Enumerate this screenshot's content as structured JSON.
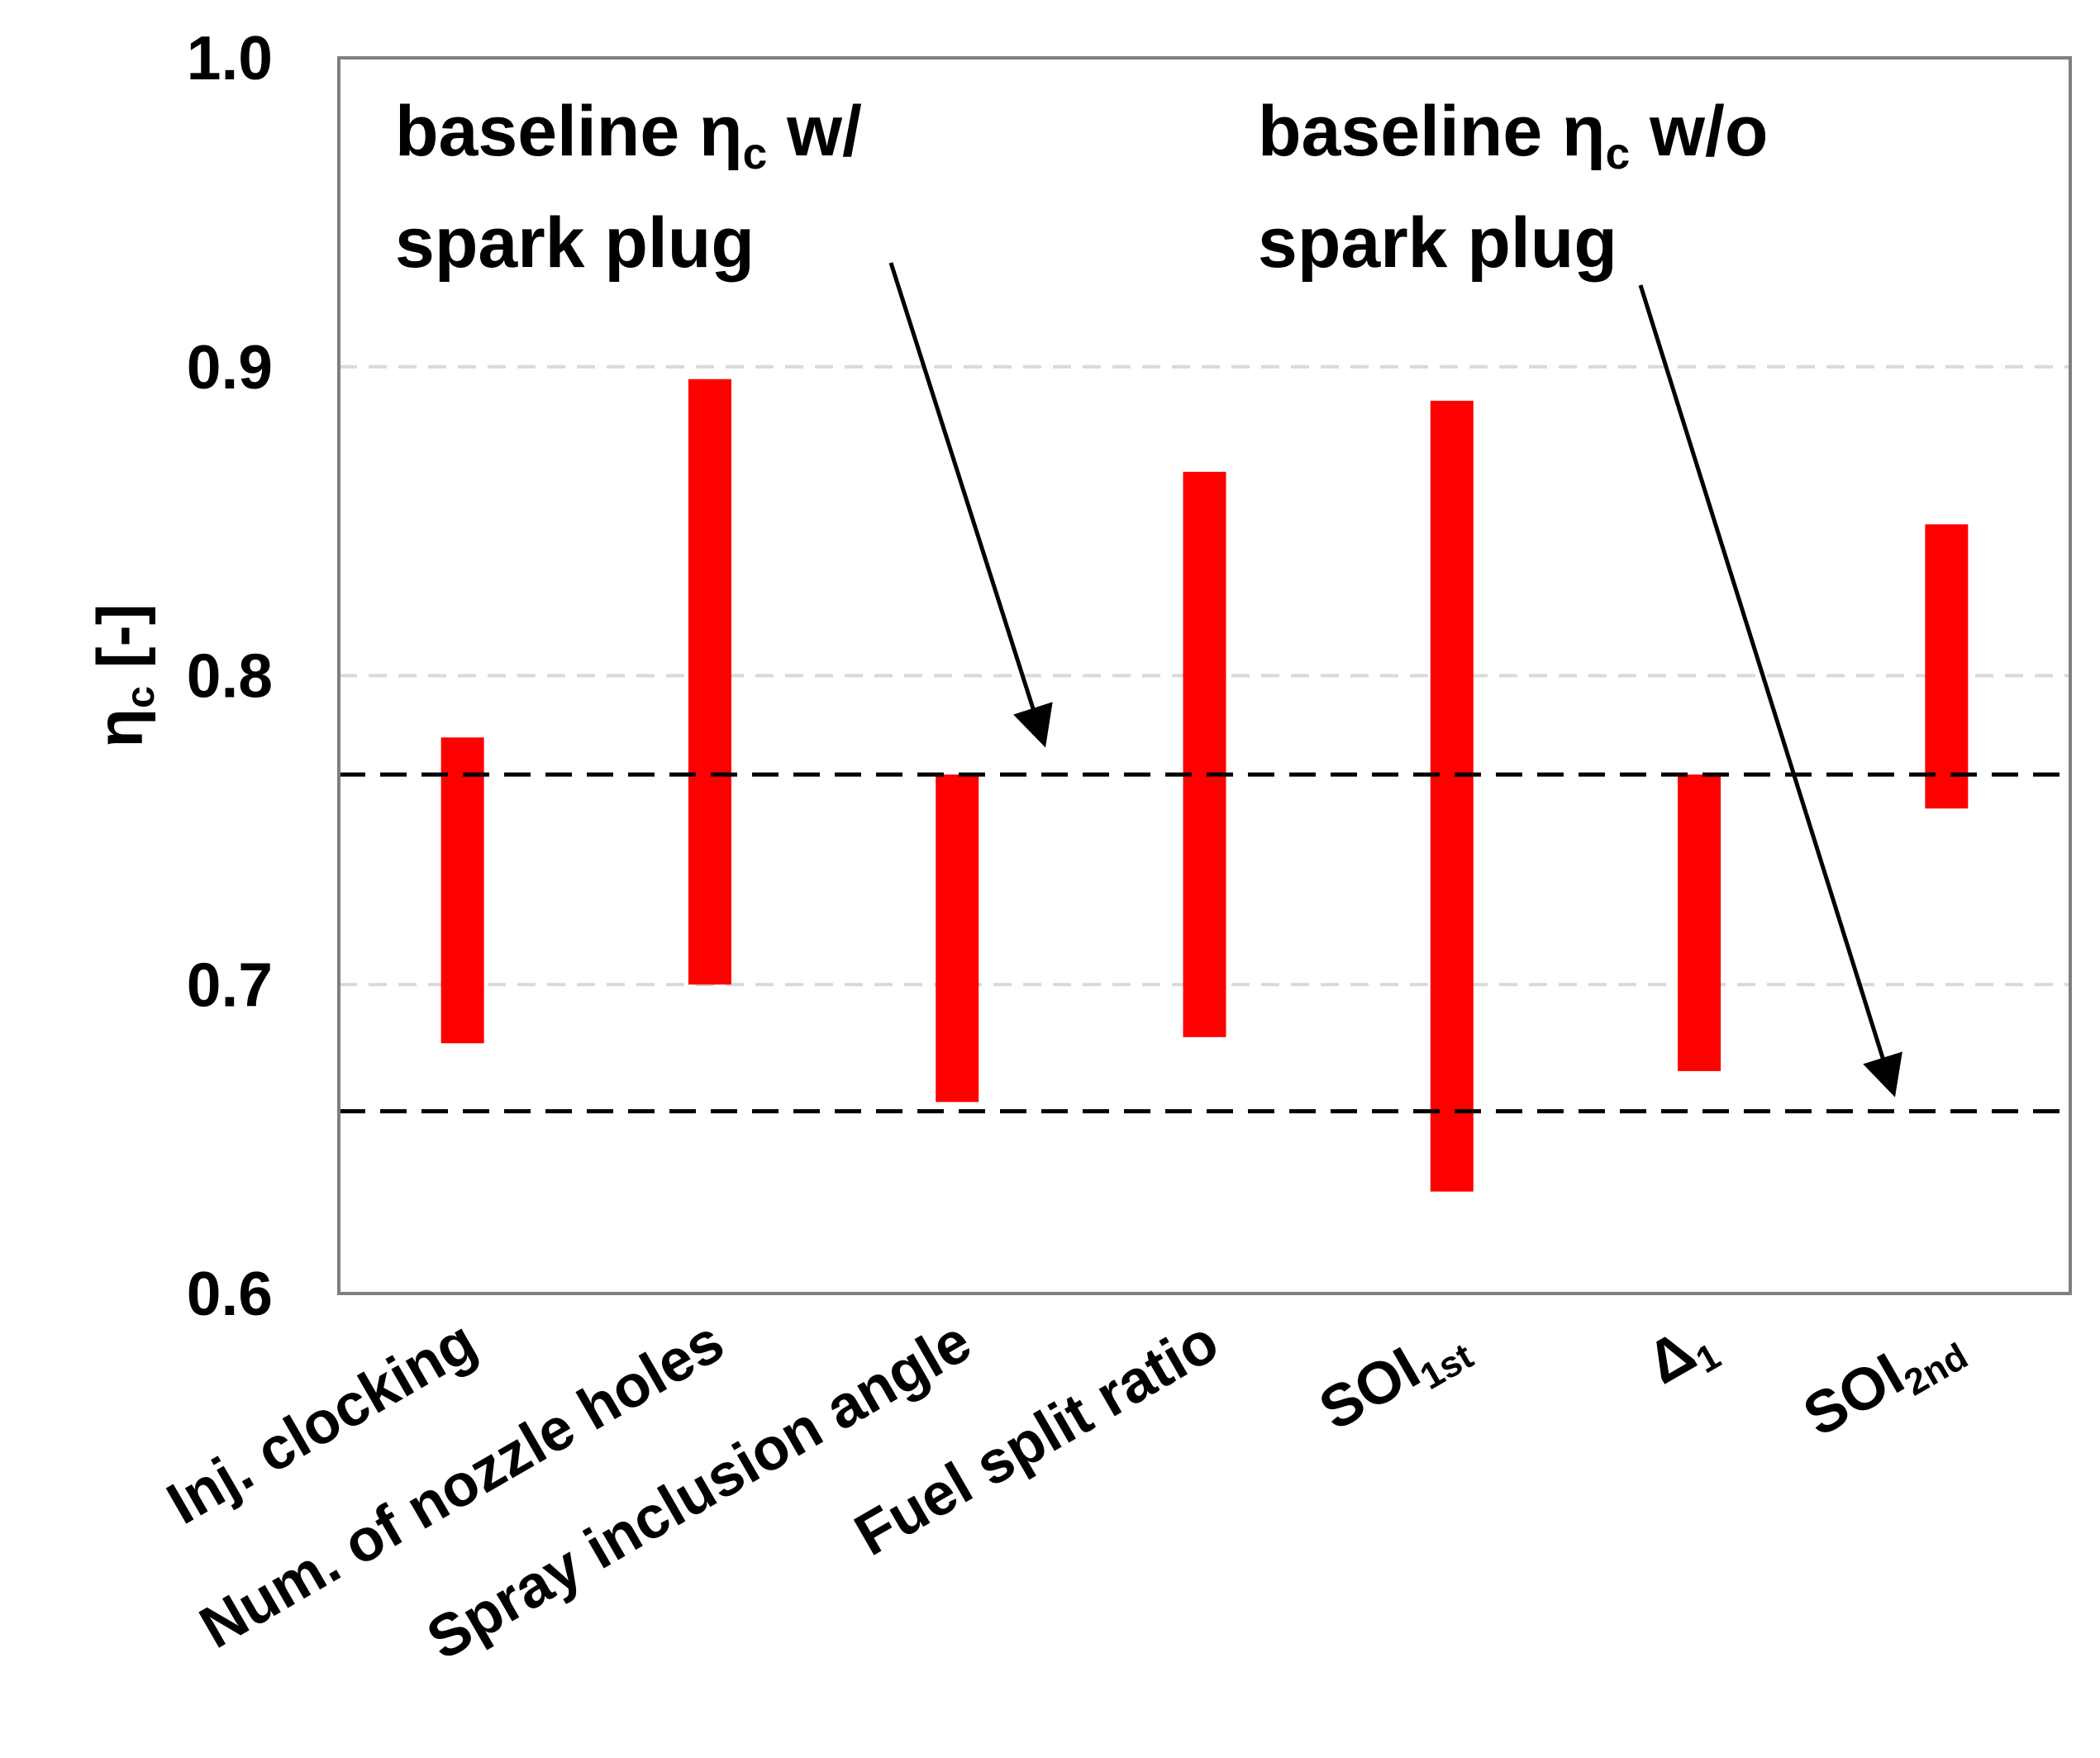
{
  "chart_data": {
    "type": "floating_bar",
    "title": "",
    "xlabel": "",
    "ylabel": {
      "symbol": "η",
      "subscript": "c",
      "unit": " [-]"
    },
    "ylim": [
      0.6,
      1.0
    ],
    "yticks": [
      "0.6",
      "0.7",
      "0.8",
      "0.9",
      "1.0"
    ],
    "grid": "horizontal dashed",
    "categories": [
      {
        "text": "Inj. clocking",
        "sub": ""
      },
      {
        "text": "Num. of nozzle holes",
        "sub": ""
      },
      {
        "text": "Spray inclusion angle",
        "sub": ""
      },
      {
        "text": "Fuel split ratio",
        "sub": ""
      },
      {
        "text": "SOI",
        "sub": "1st"
      },
      {
        "text": "Δ",
        "sub": "1"
      },
      {
        "text": "SOI",
        "sub": "2nd"
      }
    ],
    "ranges": [
      {
        "low": 0.681,
        "high": 0.78
      },
      {
        "low": 0.7,
        "high": 0.896
      },
      {
        "low": 0.662,
        "high": 0.768
      },
      {
        "low": 0.683,
        "high": 0.866
      },
      {
        "low": 0.633,
        "high": 0.889
      },
      {
        "low": 0.672,
        "high": 0.768
      },
      {
        "low": 0.757,
        "high": 0.849
      }
    ],
    "bar_color": "#ff0000",
    "reference_lines": [
      {
        "value": 0.768
      },
      {
        "value": 0.659
      }
    ],
    "annotations": [
      {
        "lines": [
          {
            "parts": [
              {
                "t": "baseline  η"
              },
              {
                "t": "c",
                "sub": true
              },
              {
                "t": " w/"
              }
            ]
          },
          {
            "parts": [
              {
                "t": "spark  plug"
              }
            ]
          }
        ]
      },
      {
        "lines": [
          {
            "parts": [
              {
                "t": "baseline  η"
              },
              {
                "t": "c",
                "sub": true
              },
              {
                "t": " w/o"
              }
            ]
          },
          {
            "parts": [
              {
                "t": "spark  plug"
              }
            ]
          }
        ]
      }
    ]
  }
}
